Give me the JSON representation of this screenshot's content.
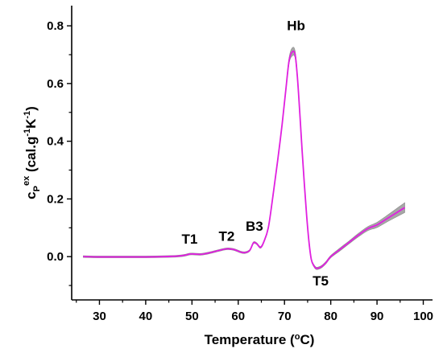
{
  "chart_data": {
    "type": "line",
    "title": "",
    "xlabel": "Temperature (oC)",
    "ylabel": "cPex (cal.g-1K-1)",
    "xlim": [
      24,
      102
    ],
    "ylim": [
      -0.15,
      0.87
    ],
    "xticks": [
      30,
      40,
      50,
      60,
      70,
      80,
      90,
      100
    ],
    "yticks": [
      0.0,
      0.2,
      0.4,
      0.6,
      0.8
    ],
    "ytick_labels": [
      "0.0",
      "0.2",
      "0.4",
      "0.6",
      "0.8"
    ],
    "grid": false,
    "legend": "none",
    "line_color": "#e020e0",
    "band_color": "#8a8a8a",
    "series": [
      {
        "x": [
          26.5,
          30,
          35,
          40,
          44,
          47,
          48.5,
          49.5,
          50.5,
          52,
          54,
          56,
          57.5,
          59,
          60.5,
          61.5,
          62.5,
          63.3,
          64,
          64.8,
          65.5,
          66.5,
          67.5,
          68.5,
          69.5,
          70.3,
          71,
          71.7,
          72.3,
          72.8,
          73.3,
          73.8,
          74.3,
          74.8,
          75.3,
          75.8,
          76.3,
          76.8,
          77.3,
          78,
          79,
          80,
          82,
          84,
          86,
          88,
          90,
          92,
          94,
          96
        ],
        "y": [
          0.0,
          -0.001,
          -0.001,
          -0.001,
          0.0,
          0.002,
          0.005,
          0.009,
          0.009,
          0.008,
          0.014,
          0.022,
          0.027,
          0.025,
          0.016,
          0.014,
          0.022,
          0.048,
          0.045,
          0.032,
          0.05,
          0.1,
          0.21,
          0.33,
          0.46,
          0.58,
          0.68,
          0.71,
          0.7,
          0.62,
          0.5,
          0.37,
          0.25,
          0.14,
          0.05,
          -0.01,
          -0.03,
          -0.04,
          -0.04,
          -0.035,
          -0.02,
          0.0,
          0.025,
          0.05,
          0.075,
          0.097,
          0.11,
          0.13,
          0.15,
          0.17
        ],
        "band": [
          0.003,
          0.003,
          0.003,
          0.003,
          0.003,
          0.003,
          0.003,
          0.003,
          0.003,
          0.003,
          0.003,
          0.003,
          0.003,
          0.003,
          0.003,
          0.003,
          0.003,
          0.003,
          0.003,
          0.003,
          0.003,
          0.004,
          0.004,
          0.005,
          0.006,
          0.007,
          0.01,
          0.014,
          0.012,
          0.01,
          0.008,
          0.006,
          0.005,
          0.004,
          0.004,
          0.004,
          0.004,
          0.004,
          0.004,
          0.004,
          0.004,
          0.004,
          0.005,
          0.005,
          0.006,
          0.007,
          0.009,
          0.011,
          0.014,
          0.017
        ]
      }
    ],
    "annotations": [
      {
        "text": "T1",
        "x": 49.5,
        "y": 0.045
      },
      {
        "text": "T2",
        "x": 57.5,
        "y": 0.055
      },
      {
        "text": "B3",
        "x": 63.5,
        "y": 0.09
      },
      {
        "text": "Hb",
        "x": 72.5,
        "y": 0.785
      },
      {
        "text": "T5",
        "x": 77.8,
        "y": -0.1
      }
    ]
  }
}
